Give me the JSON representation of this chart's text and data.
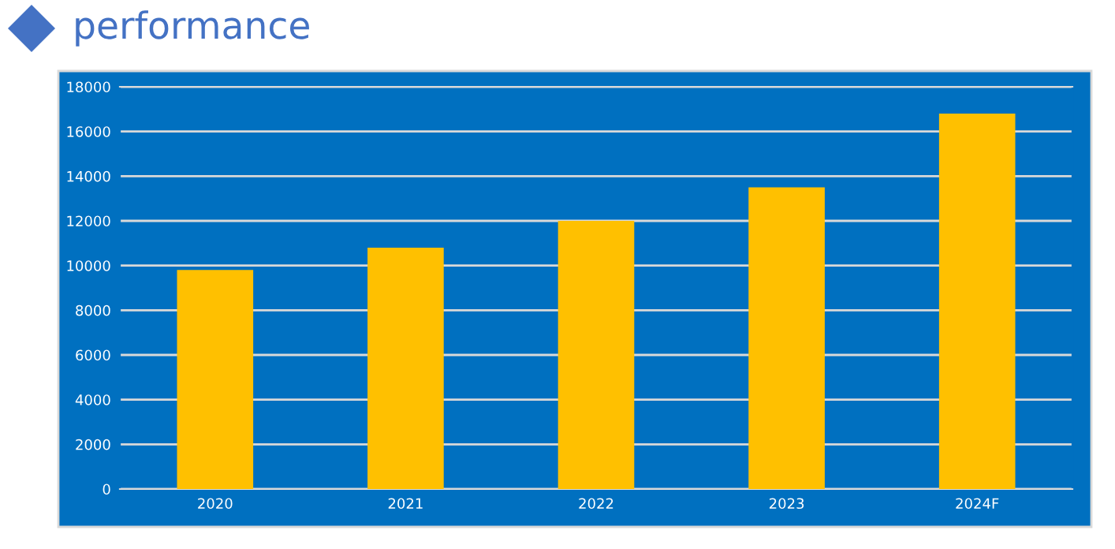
{
  "chart_data": {
    "type": "bar",
    "title": "performance",
    "categories": [
      "2020",
      "2021",
      "2022",
      "2023",
      "2024F"
    ],
    "values": [
      9800,
      10800,
      12000,
      13500,
      16800
    ],
    "color": "#ffc000",
    "ylim": [
      0,
      18000
    ],
    "yticks": [
      0,
      2000,
      4000,
      6000,
      8000,
      10000,
      12000,
      14000,
      16000,
      18000
    ],
    "grid": "y"
  }
}
